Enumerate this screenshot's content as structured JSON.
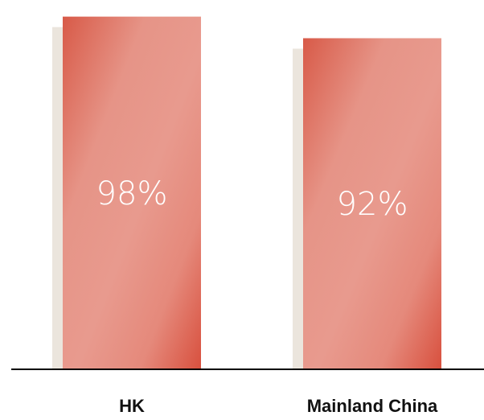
{
  "chart_data": {
    "type": "bar",
    "categories": [
      "HK",
      "Mainland China"
    ],
    "values": [
      98,
      92
    ],
    "value_labels": [
      "98%",
      "92%"
    ],
    "title": "",
    "xlabel": "",
    "ylabel": "",
    "ylim": [
      0,
      100
    ],
    "grid": false,
    "legend": "none",
    "colors": {
      "bar_edge": "#d85a48",
      "bar_mid": "#e89a8e",
      "shadow": "#ebe5dd",
      "axis": "#000000",
      "value_text": "#ffffff",
      "category_text": "#111111"
    }
  }
}
